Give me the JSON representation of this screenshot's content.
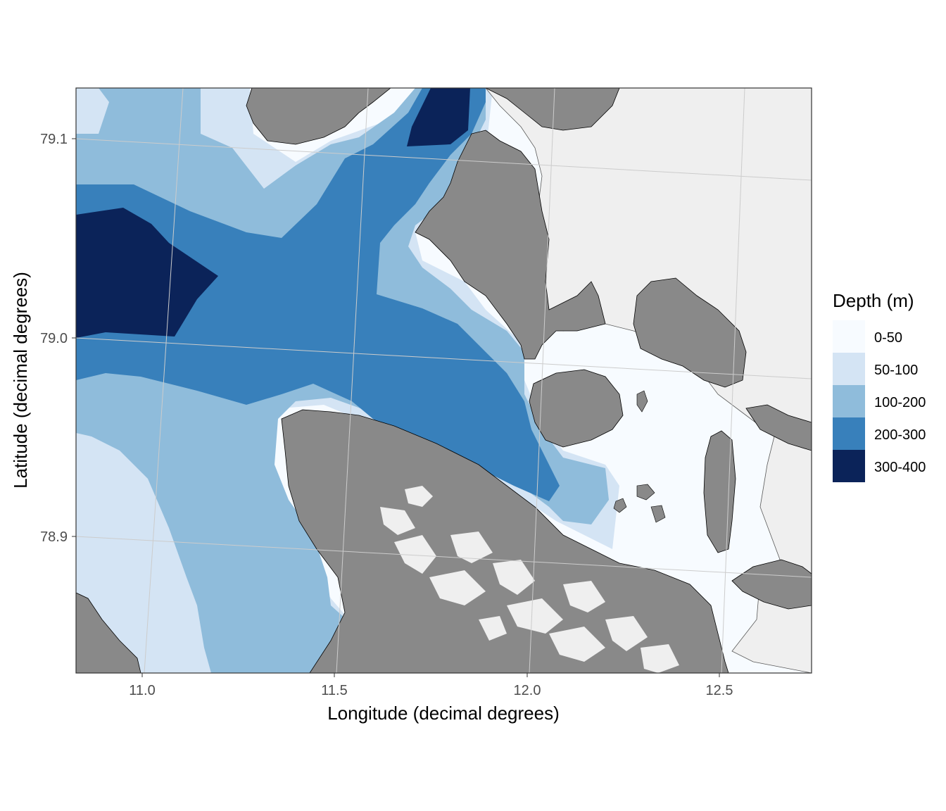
{
  "chart_data": {
    "type": "map",
    "xlabel": "Longitude (decimal degrees)",
    "ylabel": "Latitude (decimal degrees)",
    "xlim": [
      10.83,
      12.75
    ],
    "ylim": [
      78.83,
      79.125
    ],
    "x_ticks": [
      {
        "value": 11.0,
        "label": "11.0"
      },
      {
        "value": 11.5,
        "label": "11.5"
      },
      {
        "value": 12.0,
        "label": "12.0"
      },
      {
        "value": 12.5,
        "label": "12.5"
      }
    ],
    "y_ticks": [
      {
        "value": 78.9,
        "label": "78.9"
      },
      {
        "value": 79.0,
        "label": "79.0"
      },
      {
        "value": 79.1,
        "label": "79.1"
      }
    ],
    "grid": true,
    "legend": {
      "title": "Depth (m)",
      "placement": "right",
      "entries": [
        {
          "label": "0-50",
          "color": "#f7fbff"
        },
        {
          "label": "50-100",
          "color": "#d4e4f4"
        },
        {
          "label": "100-200",
          "color": "#8fbcdb"
        },
        {
          "label": "200-300",
          "color": "#3880bb"
        },
        {
          "label": "300-400",
          "color": "#0b2359"
        }
      ]
    },
    "land_color": "#898989",
    "glacier_color": "#efefef"
  }
}
